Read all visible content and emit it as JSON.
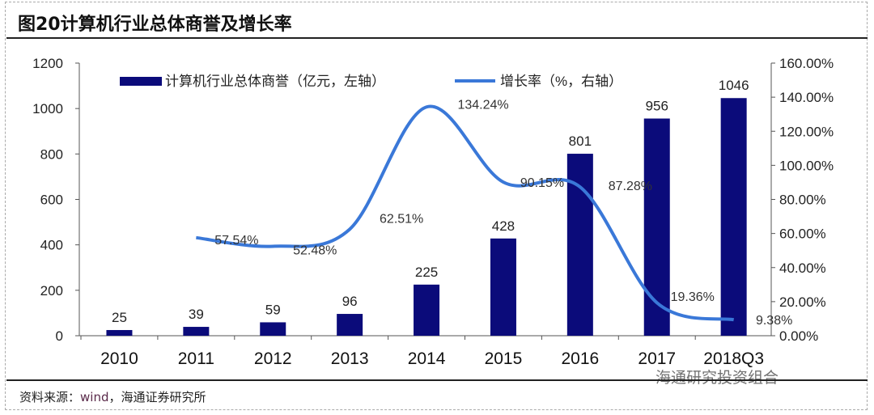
{
  "title": "图20计算机行业总体商誉及增长率",
  "source_label": "资料来源：",
  "source_wind": "wind",
  "source_rest": "，海通证券研究所",
  "watermark": "海通研究投资组合",
  "colors": {
    "bar": "#0b0b7a",
    "line": "#3a78d8"
  },
  "chart_data": {
    "type": "bar+line",
    "title": "计算机行业总体商誉及增长率",
    "categories": [
      "2010",
      "2011",
      "2012",
      "2013",
      "2014",
      "2015",
      "2016",
      "2017",
      "2018Q3"
    ],
    "series": [
      {
        "name": "计算机行业总体商誉（亿元，左轴）",
        "type": "bar",
        "axis": "left",
        "values": [
          25,
          39,
          59,
          96,
          225,
          428,
          801,
          956,
          1046
        ]
      },
      {
        "name": "增长率（%，右轴）",
        "type": "line",
        "axis": "right",
        "values": [
          null,
          57.54,
          52.48,
          62.51,
          134.24,
          90.15,
          87.28,
          19.36,
          9.38
        ],
        "labels": [
          "",
          "57.54%",
          "52.48%",
          "62.51%",
          "134.24%",
          "90.15%",
          "87.28%",
          "19.36%",
          "9.38%"
        ]
      }
    ],
    "ylim_left": [
      0,
      1200
    ],
    "yticks_left": [
      "0",
      "200",
      "400",
      "600",
      "800",
      "1000",
      "1200"
    ],
    "ylim_right": [
      0,
      160
    ],
    "yticks_right": [
      "0.00%",
      "20.00%",
      "40.00%",
      "60.00%",
      "80.00%",
      "100.00%",
      "120.00%",
      "140.00%",
      "160.00%"
    ],
    "legend": "top",
    "grid": false
  }
}
